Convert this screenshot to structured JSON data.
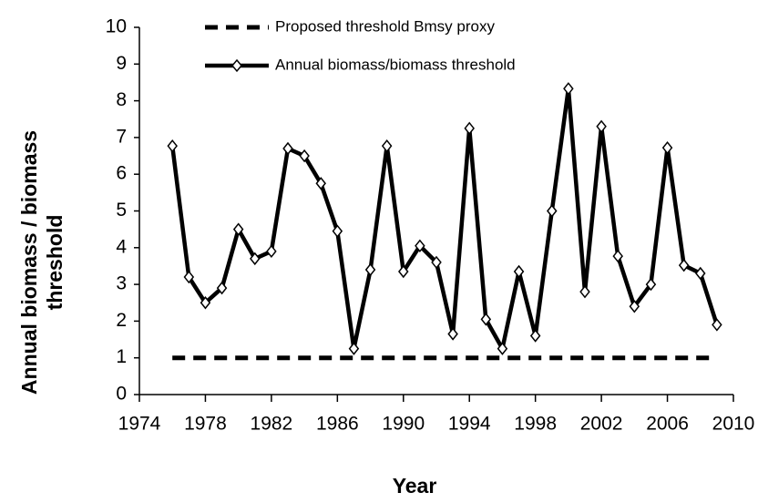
{
  "chart_data": {
    "type": "line",
    "xlabel": "Year",
    "ylabel": [
      "Annual biomass / biomass",
      "threshold"
    ],
    "xlim": [
      1974,
      2010
    ],
    "xticks": [
      1974,
      1978,
      1982,
      1986,
      1990,
      1994,
      1998,
      2002,
      2006,
      2010
    ],
    "ylim": [
      0,
      10
    ],
    "yticks": [
      0,
      1,
      2,
      3,
      4,
      5,
      6,
      7,
      8,
      9,
      10
    ],
    "series": [
      {
        "name": "Proposed threshold Bmsy proxy",
        "color": "#000000",
        "dash": true,
        "marker": false,
        "x": [
          1976,
          2009
        ],
        "values": [
          1,
          1
        ]
      },
      {
        "name": "Annual biomass/biomass threshold",
        "color": "#000000",
        "dash": false,
        "marker": true,
        "x": [
          1976,
          1977,
          1978,
          1979,
          1980,
          1981,
          1982,
          1983,
          1984,
          1985,
          1986,
          1987,
          1988,
          1989,
          1990,
          1991,
          1992,
          1993,
          1994,
          1995,
          1996,
          1997,
          1998,
          1999,
          2000,
          2001,
          2002,
          2003,
          2004,
          2005,
          2006,
          2007,
          2008,
          2009
        ],
        "values": [
          6.77,
          3.2,
          2.5,
          2.9,
          4.5,
          3.7,
          3.9,
          6.7,
          6.5,
          5.75,
          4.45,
          1.25,
          3.4,
          6.77,
          3.35,
          4.05,
          3.6,
          1.65,
          7.25,
          2.05,
          1.25,
          3.35,
          1.6,
          5.0,
          8.33,
          2.8,
          7.3,
          3.77,
          2.4,
          3.0,
          6.72,
          3.52,
          3.3,
          1.9
        ]
      }
    ]
  }
}
